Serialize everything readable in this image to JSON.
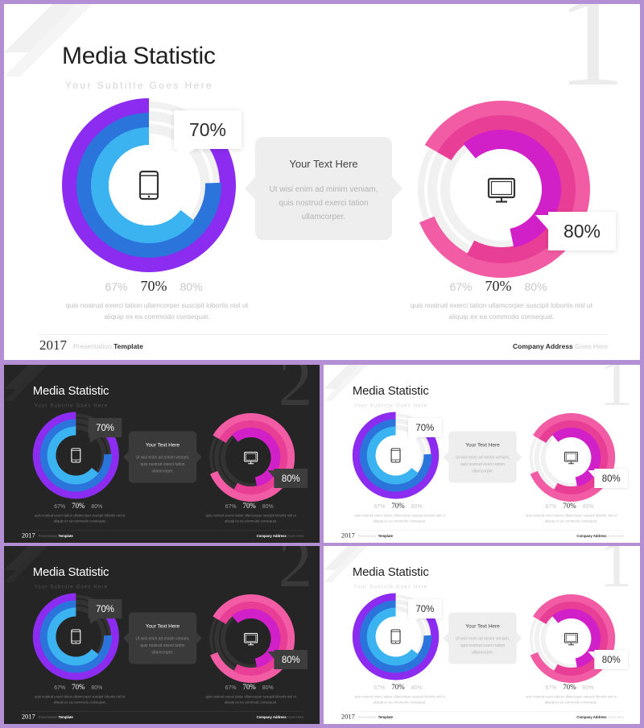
{
  "slide": {
    "title": "Media Statistic",
    "subtitle": "Your Subtitle Goes Here",
    "textbox": {
      "heading": "Your Text Here",
      "body": "Ut wisi enim ad minim veniam, quis nostrud exerci tation ullamcorper."
    },
    "left_chart": {
      "icon": "tablet-icon",
      "callout": "70%",
      "value": 0.7,
      "stats": {
        "left": "67%",
        "middle": "70%",
        "right": "80%"
      },
      "description": "quis nostrud exerci tation ullamcorper suscipit lobortis nisl ut aliquip ex ea commodo consequat."
    },
    "right_chart": {
      "icon": "monitor-icon",
      "callout": "80%",
      "value": 0.8,
      "stats": {
        "left": "67%",
        "middle": "70%",
        "right": "80%"
      },
      "description": "quis nostrud exerci tation ullamcorper suscipit lobortis nisl ut aliquip ex ea commodo consequat."
    },
    "footer": {
      "year": "2017",
      "presentation_prefix": "Presentation",
      "presentation_bold": "Template",
      "address_bold": "Company Address",
      "address_rest": "Goes Here"
    }
  },
  "variants": [
    {
      "theme": "light",
      "number": "1"
    },
    {
      "theme": "dark",
      "number": "2"
    },
    {
      "theme": "light",
      "number": "1"
    },
    {
      "theme": "dark",
      "number": "2"
    },
    {
      "theme": "light",
      "number": "1"
    }
  ],
  "colors": {
    "left_ring_outer": "#8b2cf0",
    "left_ring_mid": "#2b74db",
    "left_ring_inner": "#3ab3f0",
    "right_ring_outer": "#f25ca4",
    "right_ring_mid": "#e83e96",
    "right_ring_inner": "#d220c8",
    "track_light": "#f1f1f1",
    "track_dark": "#333333"
  }
}
